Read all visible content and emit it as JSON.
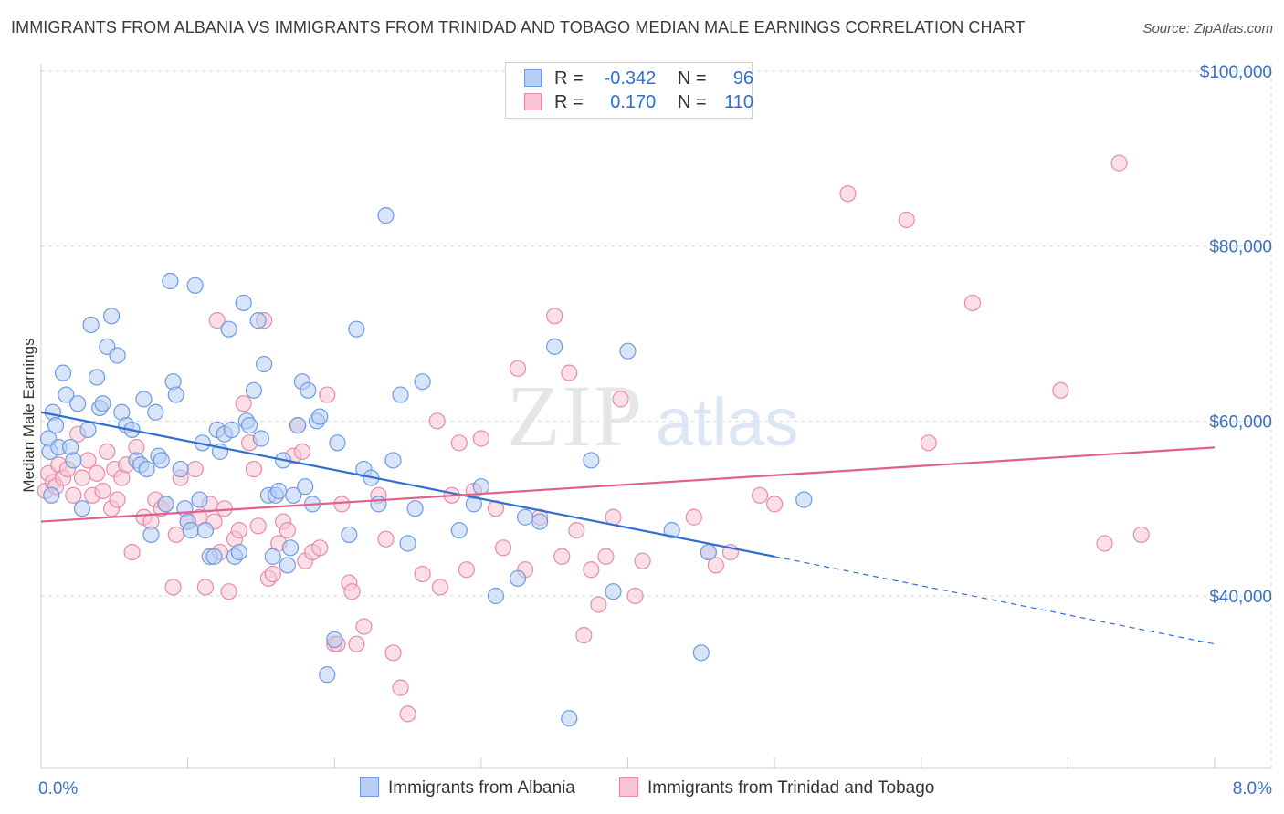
{
  "header": {
    "title": "IMMIGRANTS FROM ALBANIA VS IMMIGRANTS FROM TRINIDAD AND TOBAGO MEDIAN MALE EARNINGS CORRELATION CHART",
    "source": "Source: ZipAtlas.com"
  },
  "watermark": {
    "zip": "ZIP",
    "atlas": "atlas"
  },
  "legend": {
    "rows": [
      {
        "r_label": "R =",
        "r_value": "-0.342",
        "n_label": "N =",
        "n_value": "96"
      },
      {
        "r_label": "R =",
        "r_value": "0.170",
        "n_label": "N =",
        "n_value": "110"
      }
    ]
  },
  "bottom_legend": {
    "series1": "Immigrants from Albania",
    "series2": "Immigrants from Trinidad and Tobago"
  },
  "colors": {
    "albania_fill": "#b8cdf2",
    "albania_stroke": "#6f9ae0",
    "albania_line": "#2f6fd0",
    "trinidad_fill": "#f7c4d4",
    "trinidad_stroke": "#e88aaa",
    "trinidad_line": "#e0608a",
    "grid": "#d8d8d8",
    "tick_label": "#3a70c0"
  },
  "chart_data": {
    "type": "scatter",
    "xlabel": "",
    "ylabel": "Median Male Earnings",
    "xlim": [
      0,
      8.5
    ],
    "ylim": [
      20000,
      102000
    ],
    "x_tick_labels": [
      {
        "value": 0,
        "label": "0.0%"
      },
      {
        "value": 8,
        "label": "8.0%"
      }
    ],
    "y_tick_labels": [
      {
        "value": 40000,
        "label": "$40,000"
      },
      {
        "value": 60000,
        "label": "$60,000"
      },
      {
        "value": 80000,
        "label": "$80,000"
      },
      {
        "value": 100000,
        "label": "$100,000"
      }
    ],
    "grid": true,
    "series": [
      {
        "name": "Immigrants from Albania",
        "r": -0.342,
        "n": 96,
        "trend": {
          "x0": 0,
          "y0": 61000,
          "x1": 5.0,
          "y1": 44500,
          "dash_x1": 8.0,
          "dash_y1": 34500
        },
        "points": [
          [
            0.05,
            58000
          ],
          [
            0.06,
            56500
          ],
          [
            0.07,
            51500
          ],
          [
            0.08,
            61000
          ],
          [
            0.1,
            59500
          ],
          [
            0.12,
            57000
          ],
          [
            0.15,
            65500
          ],
          [
            0.17,
            63000
          ],
          [
            0.2,
            57000
          ],
          [
            0.22,
            55500
          ],
          [
            0.25,
            62000
          ],
          [
            0.28,
            50000
          ],
          [
            0.32,
            59000
          ],
          [
            0.34,
            71000
          ],
          [
            0.38,
            65000
          ],
          [
            0.4,
            61500
          ],
          [
            0.42,
            62000
          ],
          [
            0.45,
            68500
          ],
          [
            0.48,
            72000
          ],
          [
            0.52,
            67500
          ],
          [
            0.55,
            61000
          ],
          [
            0.58,
            59500
          ],
          [
            0.62,
            59000
          ],
          [
            0.65,
            55500
          ],
          [
            0.68,
            55000
          ],
          [
            0.7,
            62500
          ],
          [
            0.72,
            54500
          ],
          [
            0.75,
            47000
          ],
          [
            0.78,
            61000
          ],
          [
            0.8,
            56000
          ],
          [
            0.82,
            55500
          ],
          [
            0.85,
            50500
          ],
          [
            0.88,
            76000
          ],
          [
            0.9,
            64500
          ],
          [
            0.92,
            63000
          ],
          [
            0.95,
            54500
          ],
          [
            0.98,
            50000
          ],
          [
            1.0,
            48500
          ],
          [
            1.02,
            47500
          ],
          [
            1.05,
            75500
          ],
          [
            1.08,
            51000
          ],
          [
            1.1,
            57500
          ],
          [
            1.12,
            47500
          ],
          [
            1.15,
            44500
          ],
          [
            1.18,
            44500
          ],
          [
            1.2,
            59000
          ],
          [
            1.22,
            56500
          ],
          [
            1.25,
            58500
          ],
          [
            1.28,
            70500
          ],
          [
            1.3,
            59000
          ],
          [
            1.32,
            44500
          ],
          [
            1.35,
            45000
          ],
          [
            1.38,
            73500
          ],
          [
            1.4,
            60000
          ],
          [
            1.42,
            59500
          ],
          [
            1.45,
            63500
          ],
          [
            1.48,
            71500
          ],
          [
            1.5,
            58000
          ],
          [
            1.52,
            66500
          ],
          [
            1.55,
            51500
          ],
          [
            1.58,
            44500
          ],
          [
            1.6,
            51500
          ],
          [
            1.62,
            52000
          ],
          [
            1.65,
            55500
          ],
          [
            1.68,
            43500
          ],
          [
            1.7,
            45500
          ],
          [
            1.72,
            51500
          ],
          [
            1.75,
            59500
          ],
          [
            1.78,
            64500
          ],
          [
            1.8,
            52500
          ],
          [
            1.82,
            63500
          ],
          [
            1.85,
            50500
          ],
          [
            1.88,
            60000
          ],
          [
            1.9,
            60500
          ],
          [
            1.95,
            31000
          ],
          [
            2.0,
            35000
          ],
          [
            2.02,
            57500
          ],
          [
            2.1,
            47000
          ],
          [
            2.15,
            70500
          ],
          [
            2.2,
            54500
          ],
          [
            2.25,
            53500
          ],
          [
            2.3,
            50500
          ],
          [
            2.35,
            83500
          ],
          [
            2.4,
            55500
          ],
          [
            2.45,
            63000
          ],
          [
            2.5,
            46000
          ],
          [
            2.55,
            50000
          ],
          [
            2.6,
            64500
          ],
          [
            2.85,
            47500
          ],
          [
            2.95,
            50500
          ],
          [
            3.0,
            52500
          ],
          [
            3.1,
            40000
          ],
          [
            3.25,
            42000
          ],
          [
            3.3,
            49000
          ],
          [
            3.4,
            48500
          ],
          [
            3.6,
            26000
          ]
        ],
        "points_extra": [
          [
            3.5,
            68500
          ],
          [
            3.75,
            55500
          ],
          [
            3.9,
            40500
          ],
          [
            4.0,
            68000
          ],
          [
            4.3,
            47500
          ],
          [
            4.5,
            33500
          ],
          [
            4.55,
            45000
          ],
          [
            5.2,
            51000
          ]
        ]
      },
      {
        "name": "Immigrants from Trinidad and Tobago",
        "r": 0.17,
        "n": 110,
        "trend": {
          "x0": 0,
          "y0": 48500,
          "x1": 8.5,
          "y1": 57500
        },
        "points": [
          [
            0.03,
            52000
          ],
          [
            0.05,
            54000
          ],
          [
            0.08,
            53000
          ],
          [
            0.1,
            52500
          ],
          [
            0.12,
            55000
          ],
          [
            0.15,
            53500
          ],
          [
            0.18,
            54500
          ],
          [
            0.22,
            51500
          ],
          [
            0.25,
            58500
          ],
          [
            0.28,
            53500
          ],
          [
            0.32,
            55500
          ],
          [
            0.35,
            51500
          ],
          [
            0.38,
            54000
          ],
          [
            0.42,
            52000
          ],
          [
            0.45,
            56500
          ],
          [
            0.48,
            50000
          ],
          [
            0.5,
            54500
          ],
          [
            0.52,
            51000
          ],
          [
            0.55,
            53500
          ],
          [
            0.58,
            55000
          ],
          [
            0.62,
            45000
          ],
          [
            0.65,
            57000
          ],
          [
            0.7,
            49000
          ],
          [
            0.75,
            48500
          ],
          [
            0.78,
            51000
          ],
          [
            0.82,
            50000
          ],
          [
            0.85,
            50500
          ],
          [
            0.9,
            41000
          ],
          [
            0.92,
            47000
          ],
          [
            0.95,
            53500
          ],
          [
            1.0,
            48500
          ],
          [
            1.05,
            54500
          ],
          [
            1.08,
            49000
          ],
          [
            1.12,
            41000
          ],
          [
            1.15,
            50500
          ],
          [
            1.18,
            48500
          ],
          [
            1.2,
            71500
          ],
          [
            1.22,
            45000
          ],
          [
            1.25,
            50000
          ],
          [
            1.28,
            40500
          ],
          [
            1.32,
            46500
          ],
          [
            1.35,
            47500
          ],
          [
            1.38,
            62000
          ],
          [
            1.42,
            57500
          ],
          [
            1.45,
            54500
          ],
          [
            1.48,
            48000
          ],
          [
            1.52,
            71500
          ],
          [
            1.55,
            42000
          ],
          [
            1.58,
            42500
          ],
          [
            1.62,
            46000
          ],
          [
            1.65,
            48500
          ],
          [
            1.68,
            47500
          ],
          [
            1.72,
            56000
          ],
          [
            1.75,
            59500
          ],
          [
            1.78,
            56500
          ],
          [
            1.8,
            44000
          ],
          [
            1.85,
            45000
          ],
          [
            1.9,
            45500
          ],
          [
            1.95,
            63000
          ],
          [
            2.0,
            34500
          ],
          [
            2.02,
            34500
          ],
          [
            2.05,
            50500
          ],
          [
            2.1,
            41500
          ],
          [
            2.12,
            40500
          ],
          [
            2.15,
            34500
          ],
          [
            2.2,
            36500
          ],
          [
            2.3,
            51500
          ],
          [
            2.35,
            46500
          ],
          [
            2.4,
            33500
          ],
          [
            2.45,
            29500
          ],
          [
            2.5,
            26500
          ],
          [
            2.6,
            42500
          ],
          [
            2.7,
            60000
          ],
          [
            2.72,
            41000
          ],
          [
            2.8,
            51500
          ],
          [
            2.85,
            57500
          ],
          [
            2.9,
            43000
          ],
          [
            2.95,
            52000
          ],
          [
            3.0,
            58000
          ],
          [
            3.1,
            50000
          ],
          [
            3.15,
            45500
          ],
          [
            3.25,
            66000
          ],
          [
            3.3,
            43000
          ],
          [
            3.4,
            49000
          ],
          [
            3.5,
            72000
          ],
          [
            3.55,
            44500
          ],
          [
            3.6,
            65500
          ],
          [
            3.65,
            47500
          ],
          [
            3.7,
            35500
          ],
          [
            3.75,
            43000
          ],
          [
            3.8,
            39000
          ],
          [
            3.85,
            44500
          ],
          [
            3.9,
            49000
          ],
          [
            3.95,
            62500
          ],
          [
            4.05,
            40000
          ],
          [
            4.1,
            44000
          ],
          [
            4.45,
            49000
          ],
          [
            4.6,
            43500
          ],
          [
            4.7,
            45000
          ],
          [
            4.9,
            51500
          ],
          [
            5.0,
            50500
          ],
          [
            5.5,
            86000
          ],
          [
            5.9,
            83000
          ],
          [
            6.05,
            57500
          ],
          [
            6.35,
            73500
          ],
          [
            6.95,
            63500
          ],
          [
            7.25,
            46000
          ],
          [
            7.35,
            89500
          ],
          [
            7.5,
            47000
          ],
          [
            4.55,
            45000
          ]
        ]
      }
    ]
  }
}
